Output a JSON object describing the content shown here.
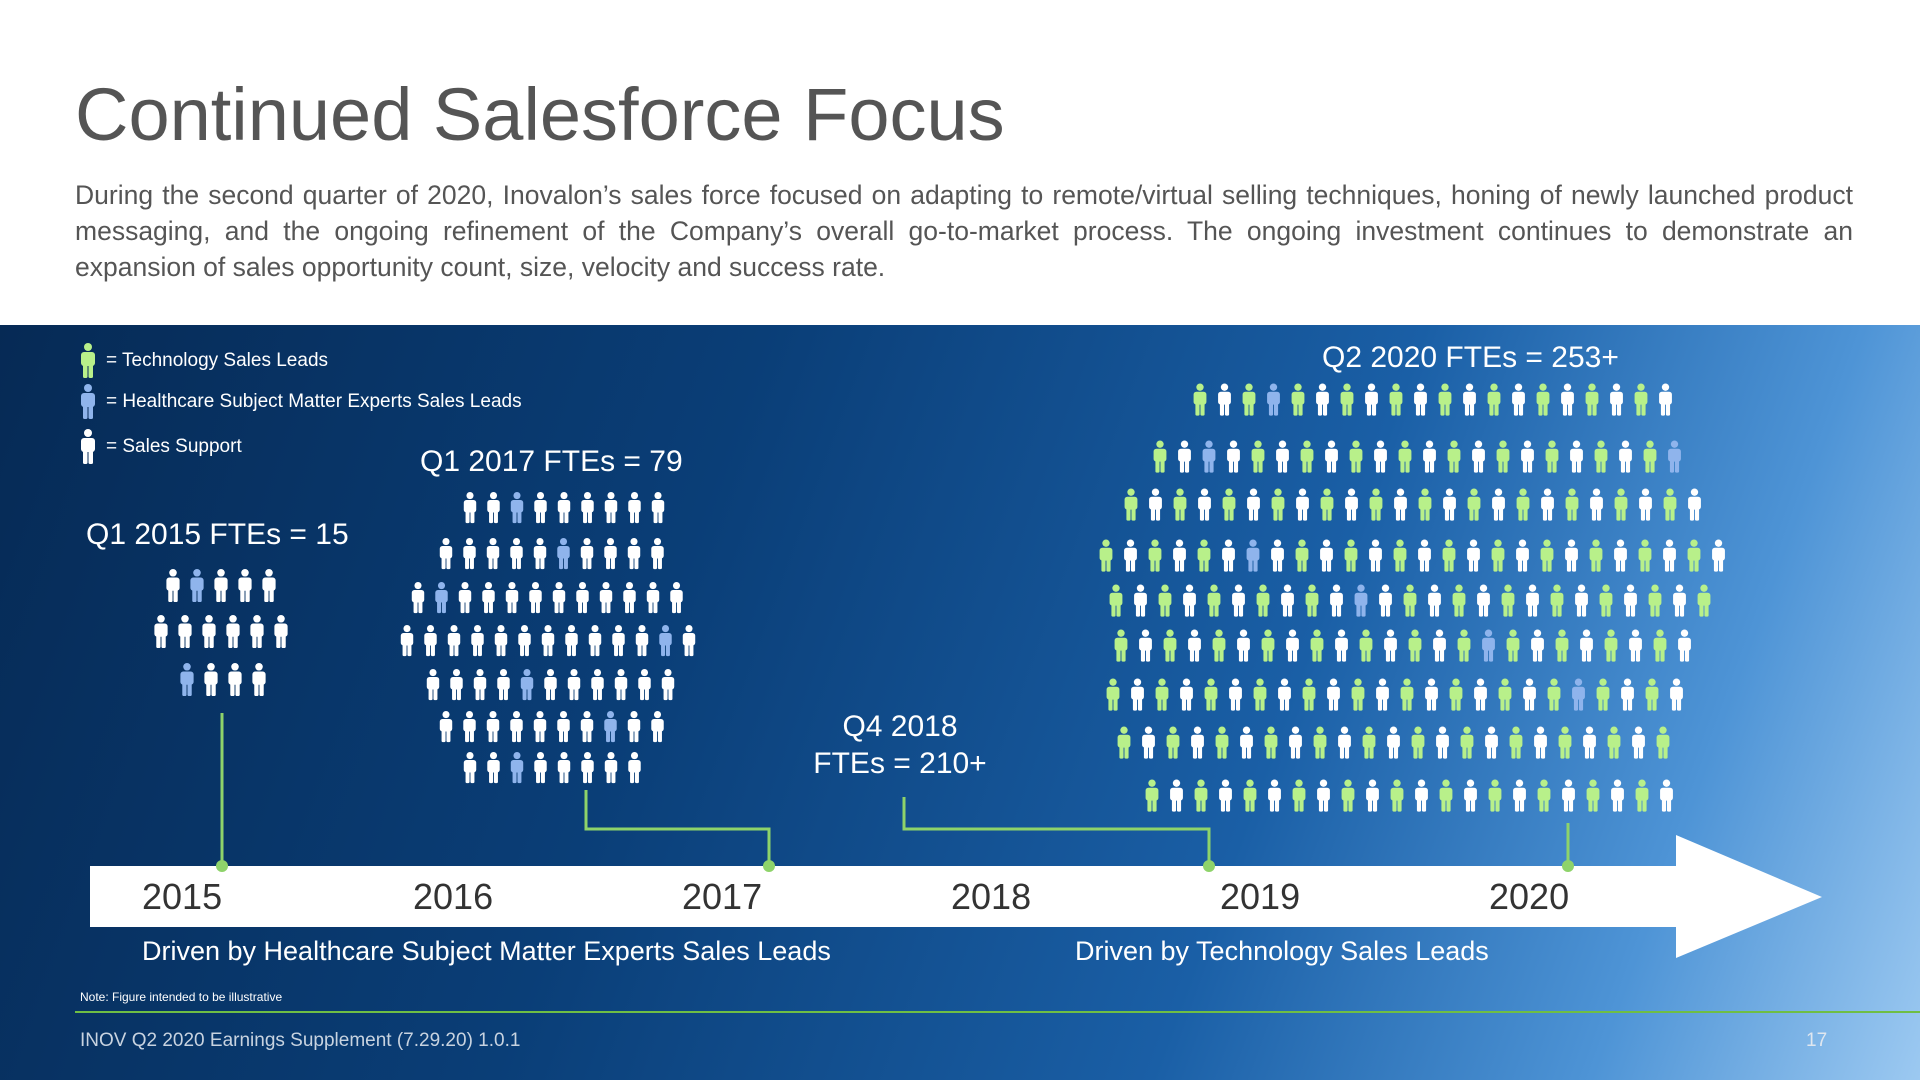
{
  "title": "Continued Salesforce Focus",
  "intro": "During the second quarter of 2020, Inovalon’s sales force focused on adapting to remote/virtual selling techniques, honing of newly launched product messaging, and the ongoing refinement of the Company’s overall go-to-market process. The ongoing investment continues to demonstrate an expansion of sales opportunity count, size, velocity and success rate.",
  "colors": {
    "technology": "#b8f08a",
    "healthcare": "#8fb4ec",
    "support": "#ffffff",
    "connector": "#8ed36a",
    "accent_rule": "#6fbe44"
  },
  "legend": [
    {
      "icon": "person-icon",
      "color_key": "technology",
      "label": "= Technology Sales Leads"
    },
    {
      "icon": "person-icon",
      "color_key": "healthcare",
      "label": "= Healthcare Subject Matter Experts Sales Leads"
    },
    {
      "icon": "person-icon",
      "color_key": "support",
      "label": "= Sales Support"
    }
  ],
  "milestones": [
    {
      "label": "Q1 2015 FTEs = 15"
    },
    {
      "label": "Q1 2017 FTEs = 79"
    },
    {
      "label_line1": "Q4 2018",
      "label_line2": "FTEs = 210+"
    },
    {
      "label": "Q2 2020 FTEs = 253+"
    }
  ],
  "years": [
    "2015",
    "2016",
    "2017",
    "2018",
    "2019",
    "2020"
  ],
  "drivers": [
    "Driven by Healthcare Subject Matter Experts Sales Leads",
    "Driven by Technology Sales Leads"
  ],
  "note": "Note: Figure intended to be illustrative",
  "footer": "INOV Q2 2020 Earnings Supplement (7.29.20) 1.0.1",
  "page_number": "17"
}
